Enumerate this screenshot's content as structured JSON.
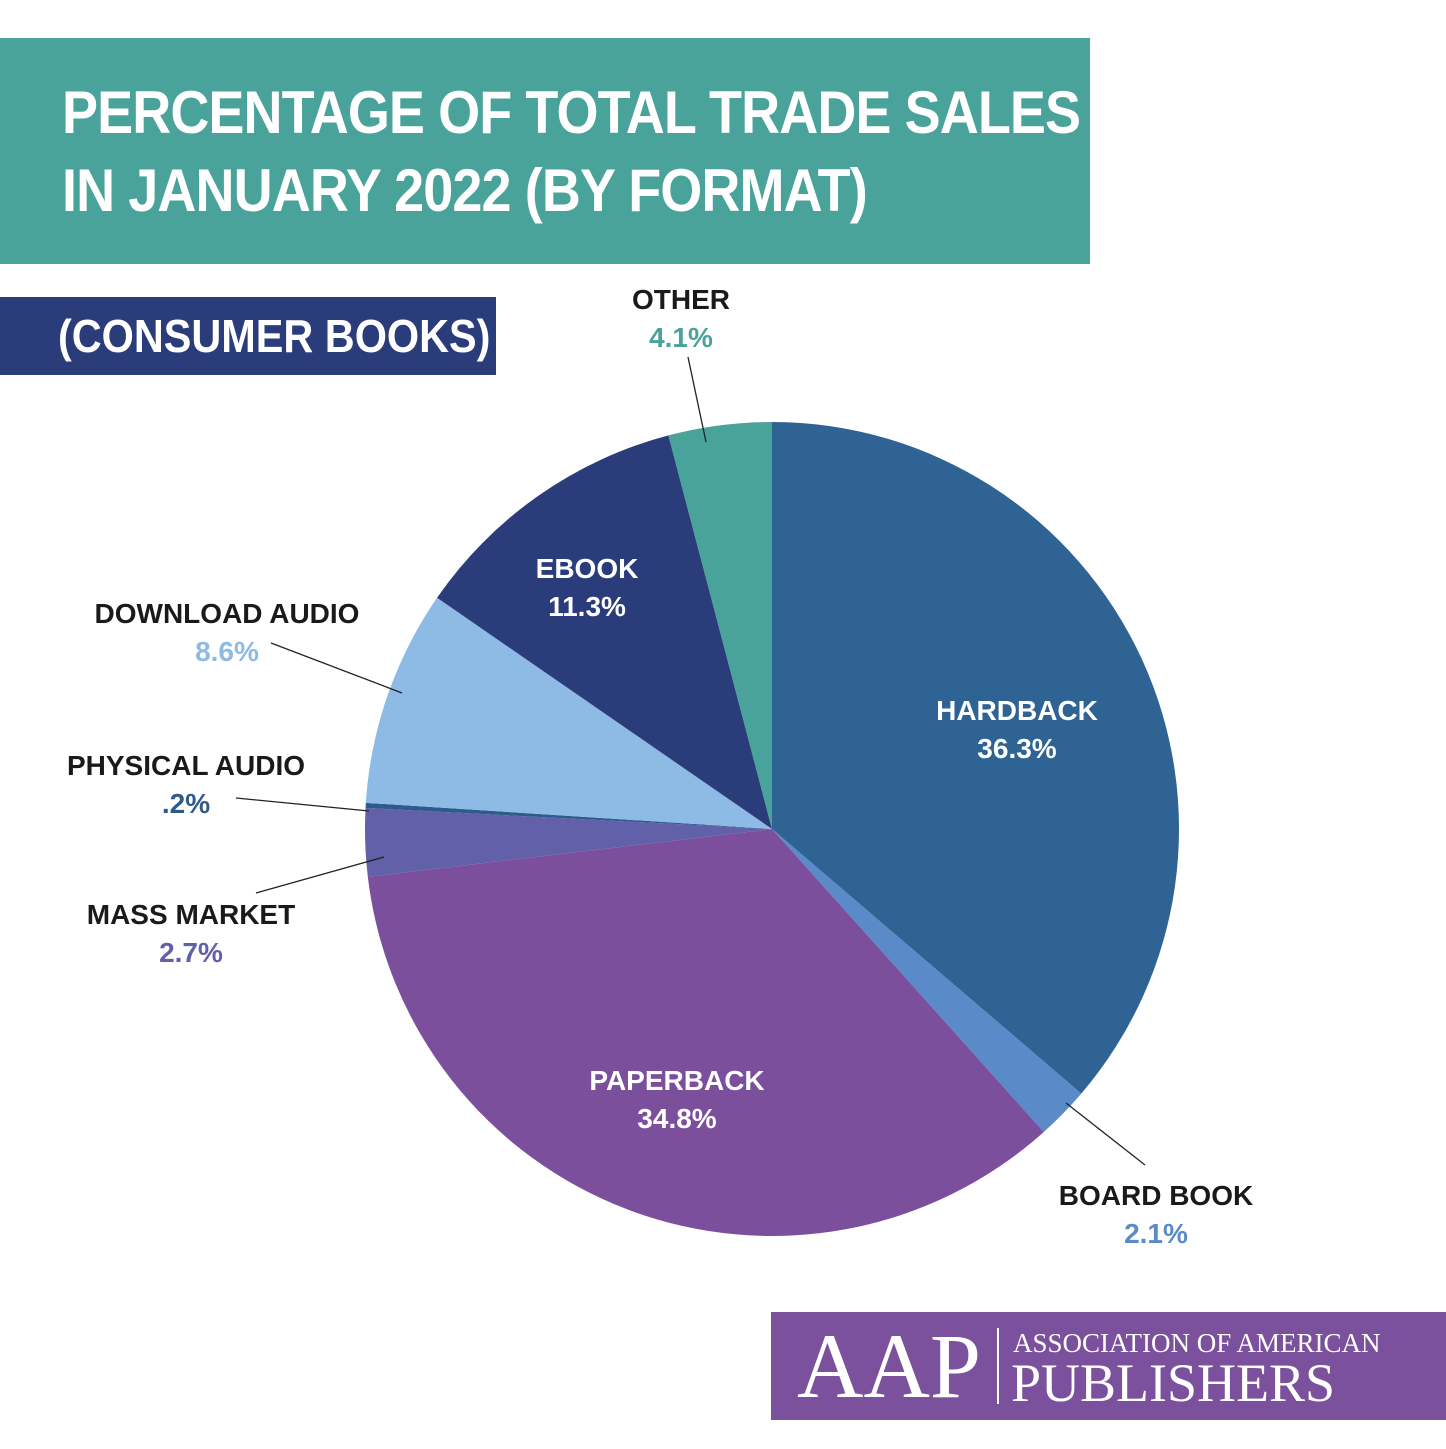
{
  "title_lines": [
    "PERCENTAGE OF TOTAL TRADE SALES",
    "IN JANUARY 2022 (BY FORMAT)"
  ],
  "subtitle": "(CONSUMER BOOKS)",
  "logo": {
    "mark": "AAP",
    "line1": "ASSOCIATION OF AMERICAN",
    "line2": "PUBLISHERS"
  },
  "chart_data": {
    "type": "pie",
    "categories": [
      "HARDBACK",
      "BOARD BOOK",
      "PAPERBACK",
      "MASS MARKET",
      "PHYSICAL AUDIO",
      "DOWNLOAD AUDIO",
      "EBOOK",
      "OTHER"
    ],
    "values": [
      36.3,
      2.1,
      34.8,
      2.7,
      0.2,
      8.6,
      11.3,
      4.1
    ],
    "value_labels": [
      "36.3%",
      "2.1%",
      "34.8%",
      "2.7%",
      ".2%",
      "8.6%",
      "11.3%",
      "4.1%"
    ],
    "unit": "%",
    "start": "12 o'clock, clockwise",
    "colors": [
      "#2e6393",
      "#5a8bc8",
      "#7b4f9c",
      "#6160a8",
      "#2e5a8c",
      "#8ebae6",
      "#2b3c7b",
      "#4aa39a"
    ],
    "label_text_colors": [
      "#ffffff",
      "#5a8bc8",
      "#ffffff",
      "#6160a8",
      "#2e5a8c",
      "#8ebae6",
      "#ffffff",
      "#4aa39a"
    ]
  }
}
